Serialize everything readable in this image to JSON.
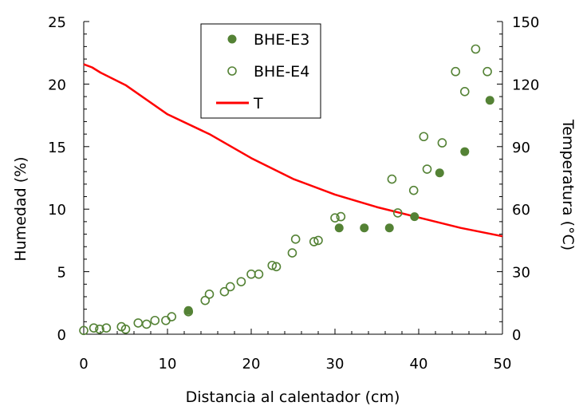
{
  "chart_data": {
    "type": "scatter",
    "xlabel": "Distancia al calentador (cm)",
    "ylabel": "Humedad (%)",
    "y2label": "Temperatura (°C)",
    "xlim": [
      0,
      50
    ],
    "ylim": [
      0,
      25
    ],
    "y2lim": [
      0,
      150
    ],
    "x_ticks": [
      0,
      10,
      20,
      30,
      40,
      50
    ],
    "y_ticks": [
      0,
      5,
      10,
      15,
      20,
      25
    ],
    "y2_ticks": [
      0,
      30,
      60,
      90,
      120,
      150
    ],
    "grid": false,
    "legend_position": "top-center",
    "colors": {
      "series": "#548235",
      "temperature": "#ff0000"
    },
    "series": [
      {
        "name": "BHE-E3",
        "marker": "filled-circle",
        "axis": "left",
        "points": [
          [
            12.5,
            1.9
          ],
          [
            30.5,
            8.5
          ],
          [
            33.5,
            8.5
          ],
          [
            36.5,
            8.5
          ],
          [
            39.5,
            9.4
          ],
          [
            42.5,
            12.9
          ],
          [
            45.5,
            14.6
          ],
          [
            48.5,
            18.7
          ]
        ]
      },
      {
        "name": "BHE-E4",
        "marker": "open-circle",
        "axis": "left",
        "points": [
          [
            0.0,
            0.3
          ],
          [
            1.2,
            0.5
          ],
          [
            1.9,
            0.4
          ],
          [
            2.7,
            0.5
          ],
          [
            4.5,
            0.6
          ],
          [
            5.0,
            0.4
          ],
          [
            6.5,
            0.9
          ],
          [
            7.5,
            0.8
          ],
          [
            8.5,
            1.1
          ],
          [
            9.8,
            1.1
          ],
          [
            10.5,
            1.4
          ],
          [
            12.5,
            1.8
          ],
          [
            14.5,
            2.7
          ],
          [
            15.0,
            3.2
          ],
          [
            16.8,
            3.4
          ],
          [
            17.5,
            3.8
          ],
          [
            18.8,
            4.2
          ],
          [
            20.0,
            4.8
          ],
          [
            20.9,
            4.8
          ],
          [
            22.5,
            5.5
          ],
          [
            23.0,
            5.4
          ],
          [
            24.9,
            6.5
          ],
          [
            25.3,
            7.6
          ],
          [
            27.5,
            7.4
          ],
          [
            28.0,
            7.5
          ],
          [
            30.0,
            9.3
          ],
          [
            30.7,
            9.4
          ],
          [
            36.8,
            12.4
          ],
          [
            37.5,
            9.7
          ],
          [
            39.4,
            11.5
          ],
          [
            40.6,
            15.8
          ],
          [
            41.0,
            13.2
          ],
          [
            42.8,
            15.3
          ],
          [
            44.4,
            21.0
          ],
          [
            45.5,
            19.4
          ],
          [
            46.8,
            22.8
          ],
          [
            48.2,
            21.0
          ]
        ]
      },
      {
        "name": "T",
        "marker": "line",
        "axis": "right",
        "points": [
          [
            0,
            129.5
          ],
          [
            1,
            128
          ],
          [
            2,
            125.5
          ],
          [
            5,
            119.5
          ],
          [
            10,
            105.5
          ],
          [
            15,
            96
          ],
          [
            20,
            84.5
          ],
          [
            25,
            74.5
          ],
          [
            30,
            67
          ],
          [
            35,
            61
          ],
          [
            40,
            56
          ],
          [
            45,
            51
          ],
          [
            50,
            47
          ]
        ]
      }
    ]
  }
}
